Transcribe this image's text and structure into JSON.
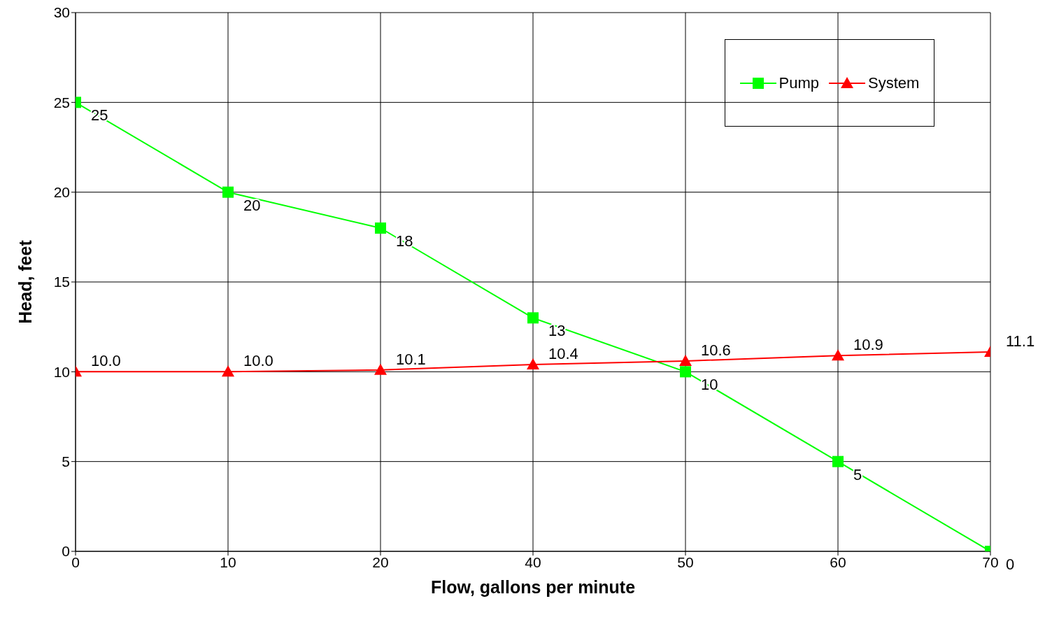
{
  "chart_data": {
    "type": "line",
    "xlabel": "Flow, gallons per minute",
    "ylabel": "Head, feet",
    "categories": [
      "0",
      "10",
      "20",
      "40",
      "50",
      "60",
      "70"
    ],
    "series": [
      {
        "name": "Pump",
        "color": "#00ff00",
        "marker": "square",
        "values": [
          25,
          20,
          18,
          13,
          10,
          5,
          0
        ],
        "value_labels": [
          "25",
          "20",
          "18",
          "13",
          "10",
          "5",
          "0"
        ]
      },
      {
        "name": "System",
        "color": "#ff0000",
        "marker": "triangle",
        "values": [
          10.0,
          10.0,
          10.1,
          10.4,
          10.6,
          10.9,
          11.1
        ],
        "value_labels": [
          "10.0",
          "10.0",
          "10.1",
          "10.4",
          "10.6",
          "10.9",
          "11.1"
        ]
      }
    ],
    "ylim": [
      0,
      30
    ],
    "yticks": [
      0,
      5,
      10,
      15,
      20,
      25,
      30
    ],
    "grid": true,
    "legend": "top right"
  }
}
